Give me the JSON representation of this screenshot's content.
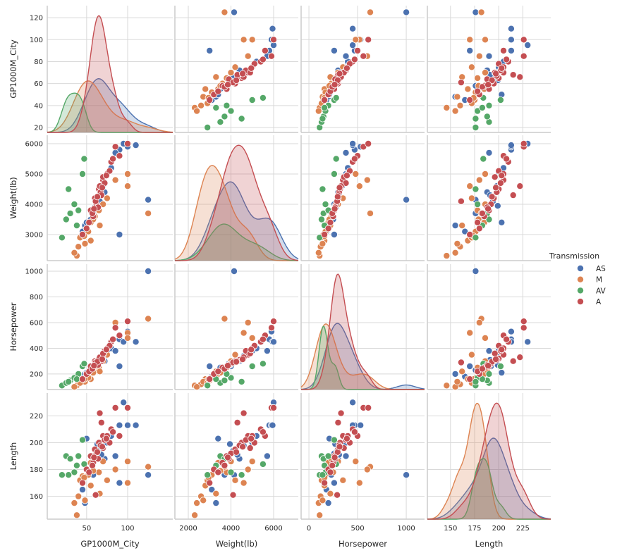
{
  "chart_data": {
    "type": "scatter",
    "subtype": "pairplot",
    "variables": [
      "GP1000M_City",
      "Weight(lb)",
      "Horsepower",
      "Length"
    ],
    "axes": {
      "GP1000M_City": {
        "lim": [
          2,
          155
        ],
        "row_ticks": [
          20,
          40,
          60,
          80,
          100,
          120
        ],
        "col_ticks": [
          50,
          100
        ]
      },
      "Weight(lb)": {
        "lim": [
          1372,
          7157
        ],
        "row_lim": [
          2140,
          6279
        ],
        "row_ticks": [
          3000,
          4000,
          5000,
          6000
        ],
        "col_ticks": [
          2000,
          4000,
          6000
        ]
      },
      "Horsepower": {
        "lim": [
          -80,
          1188
        ],
        "row_lim": [
          79,
          1055
        ],
        "row_ticks": [
          200,
          400,
          600,
          800,
          1000
        ],
        "col_ticks": [
          0,
          500,
          1000
        ]
      },
      "Length": {
        "lim": [
          126,
          254
        ],
        "row_lim": [
          143,
          237
        ],
        "row_ticks": [
          160,
          180,
          200,
          220
        ],
        "col_ticks": [
          150,
          175,
          200,
          225
        ]
      }
    },
    "row_lims": {
      "GP1000M_City": [
        15.5,
        131
      ]
    },
    "diagonal": "kde",
    "grid": true,
    "legend": {
      "title": "Transmission",
      "placement": "right",
      "entries": [
        "AS",
        "M",
        "AV",
        "A"
      ]
    },
    "series": [
      {
        "name": "AS",
        "color": "#4c72b0",
        "points": [
          [
            60,
            3900,
            280,
            190
          ],
          [
            65,
            4200,
            300,
            195
          ],
          [
            55,
            3500,
            250,
            185
          ],
          [
            70,
            4600,
            340,
            198
          ],
          [
            75,
            5000,
            380,
            200
          ],
          [
            90,
            5800,
            470,
            213
          ],
          [
            100,
            5900,
            530,
            213
          ],
          [
            110,
            5950,
            450,
            213
          ],
          [
            125,
            4150,
            1000,
            176
          ],
          [
            95,
            6000,
            450,
            230
          ],
          [
            45,
            3100,
            180,
            165
          ],
          [
            48,
            3300,
            200,
            155
          ],
          [
            80,
            5200,
            400,
            205
          ],
          [
            85,
            5700,
            380,
            190
          ],
          [
            62,
            4000,
            260,
            192
          ],
          [
            58,
            3700,
            230,
            176
          ],
          [
            50,
            3400,
            210,
            203
          ],
          [
            72,
            4400,
            300,
            188
          ],
          [
            90,
            3000,
            260,
            170
          ],
          [
            66,
            4100,
            290,
            194
          ],
          [
            68,
            4300,
            310,
            191
          ],
          [
            63,
            3950,
            270,
            199
          ]
        ]
      },
      {
        "name": "M",
        "color": "#dd8452",
        "points": [
          [
            45,
            3000,
            150,
            175
          ],
          [
            40,
            2600,
            120,
            160
          ],
          [
            38,
            2300,
            110,
            146
          ],
          [
            50,
            3200,
            180,
            180
          ],
          [
            55,
            3400,
            200,
            185
          ],
          [
            60,
            3600,
            230,
            188
          ],
          [
            35,
            2400,
            100,
            155
          ],
          [
            65,
            3800,
            250,
            178
          ],
          [
            75,
            4200,
            350,
            172
          ],
          [
            100,
            4600,
            520,
            170
          ],
          [
            125,
            3700,
            630,
            182
          ],
          [
            55,
            2800,
            160,
            168
          ],
          [
            48,
            2700,
            140,
            157
          ],
          [
            70,
            4000,
            300,
            186
          ],
          [
            42,
            2900,
            130,
            172
          ],
          [
            66,
            3300,
            220,
            162
          ],
          [
            85,
            4800,
            600,
            180
          ],
          [
            100,
            5000,
            480,
            186
          ],
          [
            52,
            3100,
            170,
            176
          ],
          [
            58,
            3500,
            210,
            179
          ],
          [
            47,
            2950,
            160,
            174
          ]
        ]
      },
      {
        "name": "AV",
        "color": "#55a868",
        "points": [
          [
            20,
            2900,
            110,
            176
          ],
          [
            25,
            3500,
            130,
            190
          ],
          [
            30,
            3700,
            150,
            188
          ],
          [
            35,
            4000,
            170,
            178
          ],
          [
            28,
            4500,
            140,
            176
          ],
          [
            45,
            5000,
            260,
            202
          ],
          [
            47,
            5500,
            280,
            184
          ],
          [
            40,
            3800,
            200,
            190
          ],
          [
            38,
            3300,
            160,
            183
          ]
        ]
      },
      {
        "name": "A",
        "color": "#c44e52",
        "points": [
          [
            60,
            4200,
            300,
            195
          ],
          [
            65,
            4500,
            320,
            200
          ],
          [
            70,
            4800,
            350,
            205
          ],
          [
            55,
            3800,
            260,
            190
          ],
          [
            62,
            4000,
            280,
            192
          ],
          [
            75,
            5000,
            400,
            205
          ],
          [
            80,
            5400,
            450,
            210
          ],
          [
            58,
            3600,
            250,
            185
          ],
          [
            67,
            4400,
            310,
            198
          ],
          [
            72,
            4700,
            380,
            202
          ],
          [
            85,
            5900,
            560,
            226
          ],
          [
            100,
            6000,
            610,
            226
          ],
          [
            68,
            4300,
            300,
            215
          ],
          [
            50,
            3200,
            200,
            180
          ],
          [
            64,
            3900,
            270,
            188
          ],
          [
            90,
            5600,
            500,
            205
          ],
          [
            78,
            5100,
            420,
            200
          ],
          [
            66,
            4600,
            330,
            222
          ],
          [
            53,
            3400,
            220,
            178
          ],
          [
            61,
            4100,
            290,
            161
          ],
          [
            45,
            3000,
            160,
            170
          ],
          [
            70,
            4900,
            360,
            196
          ],
          [
            82,
            5500,
            470,
            208
          ],
          [
            57,
            3700,
            240,
            183
          ],
          [
            63,
            4250,
            295,
            193
          ],
          [
            69,
            4550,
            315,
            197
          ],
          [
            59,
            3850,
            265,
            189
          ],
          [
            74,
            4950,
            390,
            203
          ]
        ]
      }
    ]
  }
}
